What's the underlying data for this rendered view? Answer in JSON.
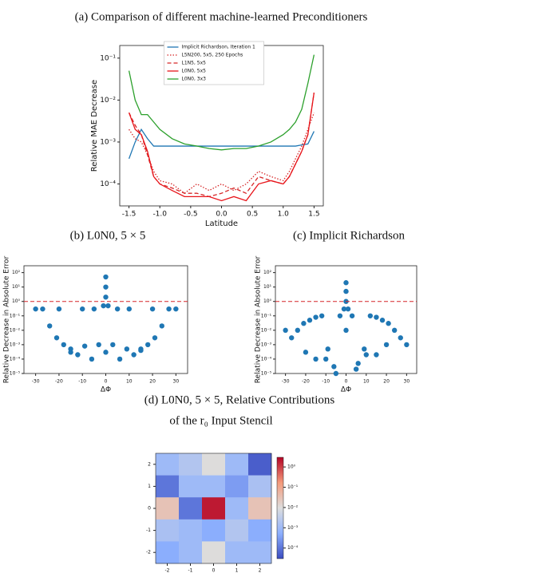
{
  "chart_data": [
    {
      "type": "line",
      "title": "(a) Comparison of different machine-learned Preconditioners",
      "xlabel": "Latitude",
      "ylabel": "Relative MAE Decrease",
      "ylog": true,
      "legend": "upper center",
      "x": [
        -1.5,
        -1.4,
        -1.3,
        -1.2,
        -1.1,
        -1.0,
        -0.8,
        -0.6,
        -0.4,
        -0.2,
        0,
        0.2,
        0.4,
        0.6,
        0.8,
        1.0,
        1.1,
        1.2,
        1.3,
        1.4,
        1.5
      ],
      "xlim": [
        -1.65,
        1.65
      ],
      "ylim": [
        3e-05,
        0.2
      ],
      "xticks": [
        -1.5,
        {
          "value": -1,
          "label": "-1.0"
        },
        -0.5,
        {
          "value": 0,
          "label": "0.0"
        },
        0.5,
        {
          "value": 1,
          "label": "1.0"
        },
        1.5
      ],
      "yticks": [
        {
          "value": 0.0001,
          "label": "10⁻⁴"
        },
        {
          "value": 0.001,
          "label": "10⁻³"
        },
        {
          "value": 0.01,
          "label": "10⁻²"
        },
        {
          "value": 0.1,
          "label": "10⁻¹"
        }
      ],
      "series": [
        {
          "name": "Implicit Richardson, Iteration 1",
          "color": "#1f77b4",
          "style": "solid",
          "values": [
            0.0004,
            0.001,
            0.002,
            0.0012,
            0.0008,
            0.0008,
            0.0008,
            0.0008,
            0.0008,
            0.0008,
            0.0008,
            0.0008,
            0.0008,
            0.0008,
            0.0008,
            0.0008,
            0.0008,
            0.0008,
            0.00085,
            0.0009,
            0.0018
          ]
        },
        {
          "name": "L5N200, 5x5, 250 Epochs",
          "color": "#d62728",
          "style": "dotted",
          "values": [
            0.002,
            0.0012,
            0.001,
            0.0005,
            0.0002,
            0.00012,
            0.0001,
            6e-05,
            0.0001,
            7e-05,
            0.0001,
            7e-05,
            0.0001,
            0.0002,
            0.00015,
            0.00012,
            0.0002,
            0.0004,
            0.0008,
            0.002,
            0.005
          ]
        },
        {
          "name": "L1N5, 5x5",
          "color": "#d62728",
          "style": "dashed",
          "values": [
            0.005,
            0.0025,
            0.0015,
            0.0005,
            0.00015,
            0.0001,
            8e-05,
            6e-05,
            6e-05,
            5e-05,
            6e-05,
            8e-05,
            6e-05,
            0.00015,
            0.00012,
            0.0001,
            0.00015,
            0.0003,
            0.0006,
            0.0015,
            0.015
          ]
        },
        {
          "name": "L0N0, 5x5",
          "color": "#e8141a",
          "style": "solid",
          "values": [
            0.005,
            0.002,
            0.0015,
            0.0006,
            0.00015,
            0.0001,
            7e-05,
            5e-05,
            5e-05,
            5e-05,
            4e-05,
            5e-05,
            4e-05,
            0.0001,
            0.00012,
            0.0001,
            0.00015,
            0.0003,
            0.0006,
            0.0015,
            0.015
          ]
        },
        {
          "name": "L0N0, 3x3",
          "color": "#2ca02c",
          "style": "solid",
          "values": [
            0.05,
            0.01,
            0.0045,
            0.0045,
            0.003,
            0.002,
            0.0012,
            0.0009,
            0.0008,
            0.0007,
            0.00065,
            0.0007,
            0.0007,
            0.0008,
            0.001,
            0.0015,
            0.002,
            0.003,
            0.006,
            0.025,
            0.12
          ]
        }
      ]
    },
    {
      "type": "scatter",
      "title": "(b) L0N0, 5 × 5",
      "xlabel": "ΔΦ",
      "ylabel": "Relative Decrease in Absolute Error",
      "ylog": true,
      "color": "#1f77b4",
      "xlim": [
        -35,
        35
      ],
      "ylim": [
        1e-05,
        300
      ],
      "xticks": [
        -30,
        -20,
        -10,
        0,
        10,
        20,
        30
      ],
      "yticks": [
        {
          "value": 100,
          "label": "10²"
        },
        {
          "value": 10,
          "label": "10¹"
        },
        {
          "value": 1,
          "label": "10⁰"
        },
        {
          "value": 0.1,
          "label": "10⁻¹"
        },
        {
          "value": 0.01,
          "label": "10⁻²"
        },
        {
          "value": 0.001,
          "label": "10⁻³"
        },
        {
          "value": 0.0001,
          "label": "10⁻⁴"
        },
        {
          "value": 1e-05,
          "label": "10⁻⁵"
        }
      ],
      "hline": {
        "y": 1,
        "color": "#d62728",
        "style": "dashed"
      },
      "x": [
        -30,
        -27,
        -24,
        -21,
        -18,
        -15,
        -12,
        -9,
        -6,
        -3,
        -1,
        0,
        0,
        0,
        1,
        3,
        6,
        9,
        12,
        15,
        18,
        21,
        24,
        27,
        30,
        -20,
        -10,
        10,
        20,
        -5,
        5,
        -15,
        15,
        0
      ],
      "y": [
        0.3,
        0.3,
        0.02,
        0.003,
        0.001,
        0.0005,
        0.0002,
        0.0008,
        0.0001,
        0.001,
        0.5,
        50,
        10,
        2,
        0.5,
        0.001,
        0.0001,
        0.0005,
        0.0002,
        0.0005,
        0.001,
        0.003,
        0.02,
        0.3,
        0.3,
        0.3,
        0.3,
        0.3,
        0.3,
        0.3,
        0.3,
        0.0003,
        0.0004,
        0.0003
      ]
    },
    {
      "type": "scatter",
      "title": "(c) Implicit Richardson",
      "xlabel": "ΔΦ",
      "ylabel": "Relative Decrease in Absolute Error",
      "ylog": true,
      "color": "#1f77b4",
      "xlim": [
        -35,
        35
      ],
      "ylim": [
        1e-05,
        300
      ],
      "xticks": [
        -30,
        -20,
        -10,
        0,
        10,
        20,
        30
      ],
      "yticks": [
        {
          "value": 100,
          "label": "10²"
        },
        {
          "value": 10,
          "label": "10¹"
        },
        {
          "value": 1,
          "label": "10⁰"
        },
        {
          "value": 0.1,
          "label": "10⁻¹"
        },
        {
          "value": 0.01,
          "label": "10⁻²"
        },
        {
          "value": 0.001,
          "label": "10⁻³"
        },
        {
          "value": 0.0001,
          "label": "10⁻⁴"
        },
        {
          "value": 1e-05,
          "label": "10⁻⁵"
        }
      ],
      "hline": {
        "y": 1,
        "color": "#d62728",
        "style": "dashed"
      },
      "x": [
        -30,
        -27,
        -24,
        -21,
        -18,
        -15,
        -12,
        -9,
        -6,
        -3,
        -1,
        0,
        0,
        0,
        1,
        3,
        6,
        9,
        12,
        15,
        18,
        21,
        24,
        27,
        30,
        -20,
        -10,
        10,
        20,
        -5,
        5,
        -15,
        15,
        0
      ],
      "y": [
        0.01,
        0.003,
        0.01,
        0.03,
        0.05,
        0.08,
        0.1,
        0.0005,
        3e-05,
        0.1,
        0.3,
        20,
        5,
        1,
        0.3,
        0.1,
        5e-05,
        0.0005,
        0.1,
        0.08,
        0.05,
        0.03,
        0.01,
        0.003,
        0.001,
        0.0003,
        0.0001,
        0.0002,
        0.001,
        1e-05,
        2e-05,
        0.0001,
        0.0002,
        0.01
      ]
    },
    {
      "type": "heatmap",
      "title": "(d) L0N0, 5 × 5, Relative Contributions",
      "subtitle": "of the r₀ Input Stencil",
      "colormap": "coolwarm",
      "clog": true,
      "clim": [
        3e-05,
        3
      ],
      "cticks": [
        {
          "value": 1,
          "label": "10⁰"
        },
        {
          "value": 0.1,
          "label": "10⁻¹"
        },
        {
          "value": 0.01,
          "label": "10⁻²"
        },
        {
          "value": 0.001,
          "label": "10⁻³"
        },
        {
          "value": 0.0001,
          "label": "10⁻⁴"
        }
      ],
      "x_categories": [
        -2,
        -1,
        0,
        1,
        2
      ],
      "y_categories": [
        2,
        1,
        0,
        -1,
        -2
      ],
      "values": [
        [
          0.001,
          0.002,
          0.01,
          0.001,
          5e-05
        ],
        [
          0.0001,
          0.001,
          0.001,
          0.0003,
          0.0015
        ],
        [
          0.03,
          0.0001,
          2,
          0.001,
          0.03
        ],
        [
          0.0015,
          0.001,
          0.0005,
          0.002,
          0.0005
        ],
        [
          0.0005,
          0.001,
          0.01,
          0.001,
          0.001
        ]
      ]
    }
  ]
}
